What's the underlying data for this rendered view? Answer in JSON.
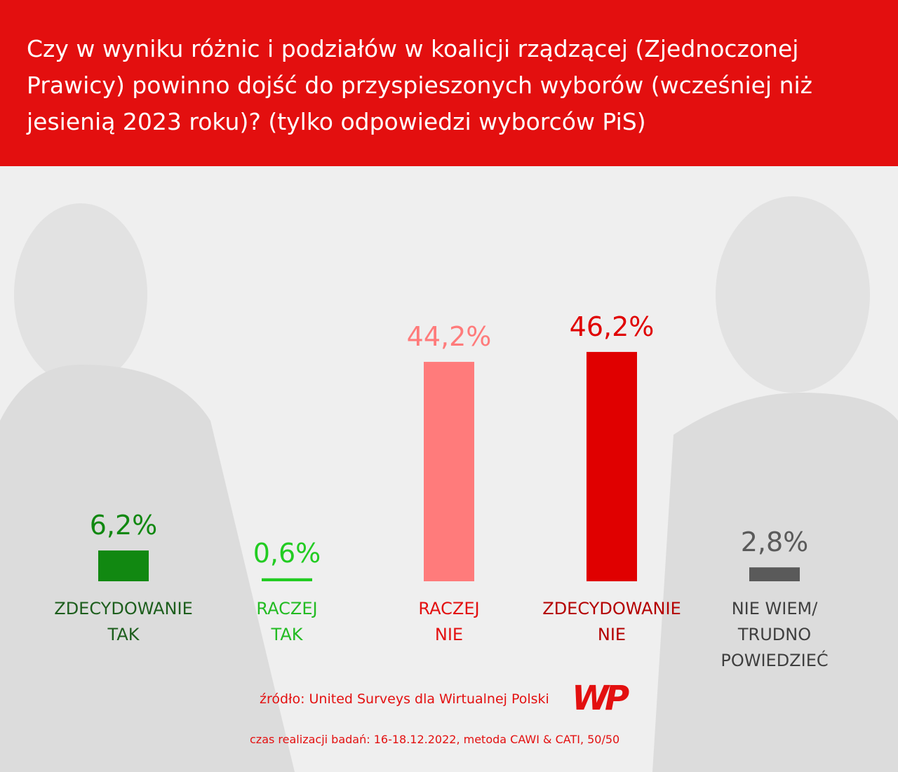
{
  "chart_data": {
    "type": "bar",
    "title": "Czy w wyniku różnic i podziałów w koalicji rządzącej (Zjednoczonej Prawicy) powinno dojść do przyspieszonych wyborów (wcześniej niż jesienią 2023 roku)? (tylko odpowiedzi wyborców PiS)",
    "categories": [
      "ZDECYDOWANIE\nTAK",
      "RACZEJ\nTAK",
      "RACZEJ\nNIE",
      "ZDECYDOWANIE\nNIE",
      "NIE WIEM/\nTRUDNO\nPOWIEDZIEĆ"
    ],
    "values": [
      6.2,
      0.6,
      44.2,
      46.2,
      2.8
    ],
    "value_labels": [
      "6,2%",
      "0,6%",
      "44,2%",
      "46,2%",
      "2,8%"
    ],
    "colors": [
      "#118811",
      "#22cc22",
      "#ff7b7b",
      "#e00000",
      "#5a5a5a"
    ],
    "label_colors": [
      "#1d5e1d",
      "#22bb22",
      "#e31010",
      "#b40000",
      "#3f3f3f"
    ],
    "source": "źródło: United Surveys dla Wirtualnej Polski",
    "logo": "WP",
    "note": "czas realizacji badań: 16-18.12.2022, metoda CAWI & CATI, 50/50"
  }
}
